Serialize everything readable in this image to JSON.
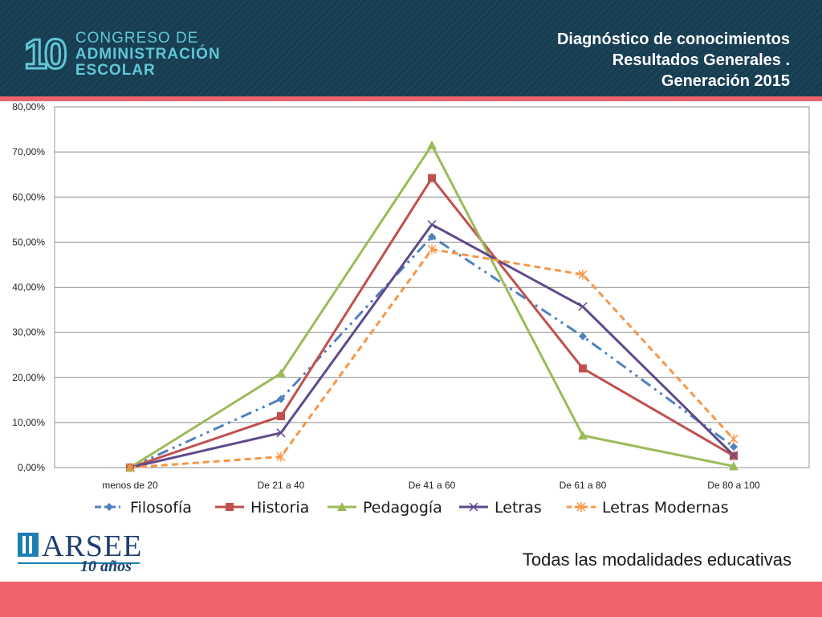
{
  "header": {
    "logo_number": "10",
    "logo_lines": [
      "CONGRESO DE",
      "ADMINISTRACIÓN",
      "ESCOLAR"
    ],
    "title_lines": [
      "Diagnóstico de conocimientos",
      "Resultados Generales .",
      "Generación 2015"
    ]
  },
  "footer": {
    "brand": "ARSEE",
    "brand_sub": "10 años",
    "caption": "Todas las modalidades educativas"
  },
  "colors": {
    "header_bg": "#163d52",
    "accent": "#f0636b",
    "logo": "#62c7d7"
  },
  "chart_data": {
    "type": "line",
    "categories": [
      "menos de 20",
      "De 21 a 40",
      "De 41 a 60",
      "De 61 a 80",
      "De 80 a 100"
    ],
    "y_ticks": [
      "0,00%",
      "10,00%",
      "20,00%",
      "30,00%",
      "40,00%",
      "50,00%",
      "60,00%",
      "70,00%",
      "80,00%"
    ],
    "ylim": [
      0,
      80
    ],
    "grid": true,
    "legend_position": "bottom",
    "series": [
      {
        "name": "Filosofía",
        "values": [
          0,
          15.2,
          51.2,
          29.1,
          4.6
        ],
        "color": "#4f81bd",
        "dash": "dash-dot-dot",
        "marker": "diamond"
      },
      {
        "name": "Historia",
        "values": [
          0,
          11.4,
          64.2,
          22.0,
          2.6
        ],
        "color": "#c0504d",
        "dash": "solid",
        "marker": "square"
      },
      {
        "name": "Pedagogía",
        "values": [
          0,
          20.9,
          71.5,
          7.1,
          0.3
        ],
        "color": "#9bbb59",
        "dash": "solid",
        "marker": "triangle"
      },
      {
        "name": "Letras",
        "values": [
          0,
          7.7,
          53.9,
          35.7,
          2.7
        ],
        "color": "#5f4a8b",
        "dash": "solid",
        "marker": "x"
      },
      {
        "name": "Letras Modernas",
        "values": [
          0,
          2.4,
          48.4,
          42.8,
          6.3
        ],
        "color": "#f79646",
        "dash": "dash",
        "marker": "asterisk"
      }
    ]
  }
}
